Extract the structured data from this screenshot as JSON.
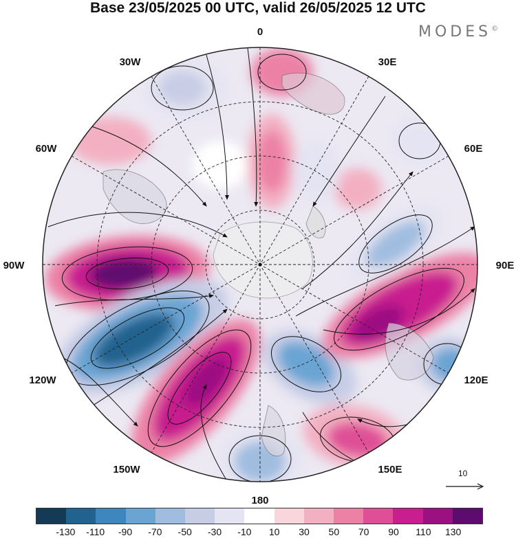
{
  "title": "Base 23/05/2025 00 UTC, valid 26/05/2025 12 UTC",
  "brand": "MODES",
  "brand_mark": "©",
  "longitude_labels": {
    "lon_0": "0",
    "lon_30e": "30E",
    "lon_60e": "60E",
    "lon_90e": "90E",
    "lon_120e": "120E",
    "lon_150e": "150E",
    "lon_180": "180",
    "lon_150w": "150W",
    "lon_120w": "120W",
    "lon_90w": "90W",
    "lon_60w": "60W",
    "lon_30w": "30W"
  },
  "reference_vector": {
    "label": "10"
  },
  "colorbar": {
    "colors": [
      "#153a56",
      "#22628f",
      "#3e87be",
      "#6aa4d3",
      "#a0bde0",
      "#c8cde6",
      "#e5e4f2",
      "#ffffff",
      "#f8d6dc",
      "#f3b0c2",
      "#ec81a6",
      "#df4f97",
      "#c81e8f",
      "#9c1182",
      "#5e0b6f"
    ],
    "tick_labels": [
      "-130",
      "-110",
      "-90",
      "-70",
      "-50",
      "-30",
      "-10",
      "10",
      "30",
      "50",
      "70",
      "90",
      "110",
      "130"
    ]
  },
  "field": {
    "type": "polar-stereographic anomaly with streamlines",
    "anomaly_centers": [
      {
        "region": "near 90W",
        "sign": "positive",
        "magnitude": 130
      },
      {
        "region": "near 105W-120W",
        "sign": "negative",
        "magnitude": -130
      },
      {
        "region": "near 130W-150W",
        "sign": "positive",
        "magnitude": 110
      },
      {
        "region": "near 180",
        "sign": "negative",
        "magnitude": -70
      },
      {
        "region": "near 150E",
        "sign": "positive",
        "magnitude": 70
      },
      {
        "region": "near 120E",
        "sign": "negative",
        "magnitude": -90
      },
      {
        "region": "near 100E",
        "sign": "positive",
        "magnitude": 110
      },
      {
        "region": "near 75E",
        "sign": "negative",
        "magnitude": -70
      },
      {
        "region": "near 0",
        "sign": "positive",
        "magnitude": 50
      },
      {
        "region": "near 30W",
        "sign": "negative",
        "magnitude": -50
      }
    ]
  }
}
